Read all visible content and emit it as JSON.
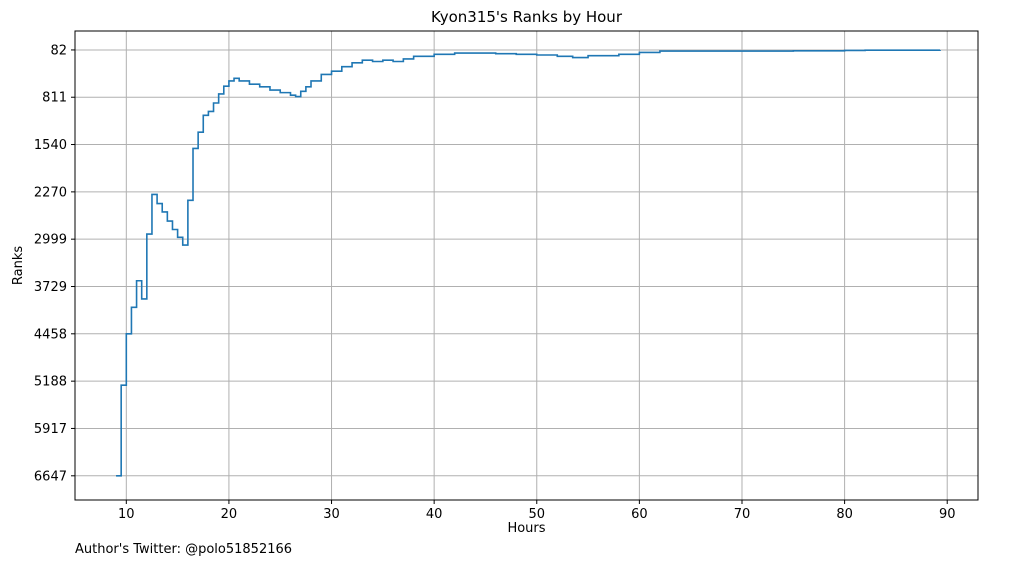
{
  "chart_data": {
    "type": "line",
    "step": true,
    "title": "Kyon315's Ranks by Hour",
    "xlabel": "Hours",
    "ylabel": "Ranks",
    "y_inverted": true,
    "xlim": [
      5,
      93
    ],
    "ylim": [
      7020,
      -210
    ],
    "x_ticks": [
      10,
      20,
      30,
      40,
      50,
      60,
      70,
      80,
      90
    ],
    "y_ticks": [
      82,
      811,
      1540,
      2270,
      2999,
      3729,
      4458,
      5188,
      5917,
      6647
    ],
    "grid": true,
    "line_color": "#1f77b4",
    "series": [
      {
        "x": [
          9.0,
          9.5,
          10.0,
          10.5,
          11.0,
          11.5,
          12.0,
          12.5,
          13.0,
          13.5,
          14.0,
          14.5,
          15.0,
          15.5,
          16.0,
          16.5,
          17.0,
          17.5,
          18.0,
          18.5,
          19.0,
          19.5,
          20.0,
          20.5,
          21.0,
          22.0,
          23.0,
          24.0,
          25.0,
          26.0,
          26.5,
          27.0,
          27.5,
          28.0,
          29.0,
          30.0,
          31.0,
          32.0,
          33.0,
          34.0,
          35.0,
          36.0,
          37.0,
          38.0,
          40.0,
          42.0,
          44.0,
          46.0,
          48.0,
          50.0,
          52.0,
          53.5,
          55.0,
          58.0,
          60.0,
          62.0,
          65.0,
          70.0,
          75.0,
          80.0,
          82.0,
          84.0,
          89.3
        ],
        "y": [
          6647,
          5250,
          4458,
          4050,
          3640,
          3920,
          2920,
          2310,
          2450,
          2580,
          2720,
          2850,
          2970,
          3090,
          2400,
          1600,
          1350,
          1090,
          1030,
          900,
          760,
          640,
          560,
          520,
          560,
          610,
          650,
          700,
          740,
          780,
          800,
          720,
          650,
          560,
          460,
          410,
          340,
          280,
          240,
          260,
          240,
          260,
          220,
          180,
          150,
          130,
          130,
          140,
          150,
          160,
          180,
          200,
          170,
          150,
          120,
          100,
          100,
          100,
          95,
          90,
          85,
          85,
          82
        ]
      }
    ]
  },
  "footer": {
    "note": "Author's Twitter: @polo51852166"
  }
}
